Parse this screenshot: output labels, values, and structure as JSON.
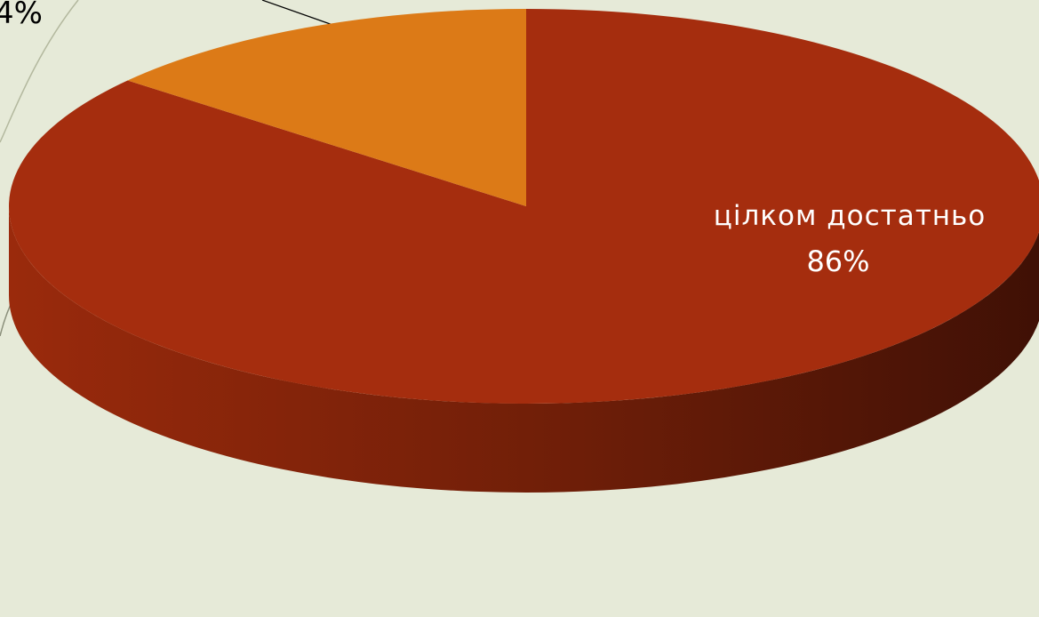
{
  "chart_data": {
    "type": "pie",
    "style": "3d",
    "slices": [
      {
        "label": "цілком достатньо",
        "value": 86,
        "value_label": "86%",
        "color": "#a52d0e"
      },
      {
        "label": "",
        "value": 14,
        "value_label": "",
        "color": "#dc7a17"
      }
    ],
    "partial_labels": [
      {
        "text": "4%"
      }
    ]
  },
  "colors": {
    "background": "#e6ead8",
    "slide_arc": "#b3b89e",
    "leader_line": "#000000"
  }
}
